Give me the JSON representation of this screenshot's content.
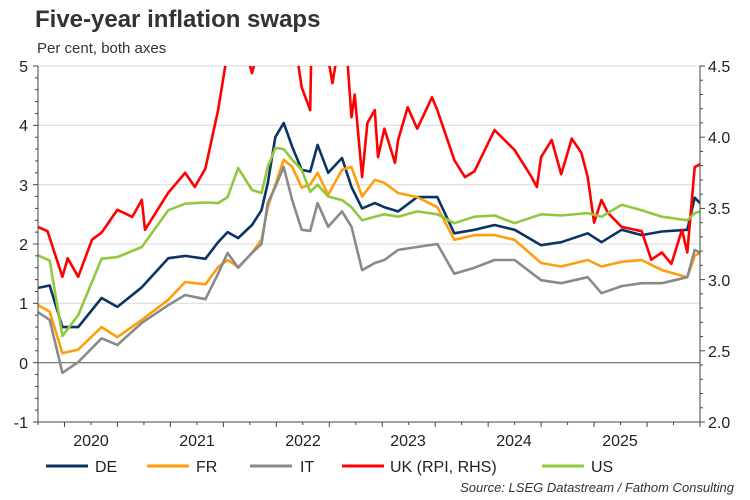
{
  "chart_data": {
    "type": "line",
    "title": "Five-year inflation swaps",
    "subtitle": "Per cent, both axes",
    "source": "Source: LSEG Datastream / Fathom Consulting",
    "x_axis": {
      "range": [
        2020.0,
        2026.25
      ],
      "tick_labels": [
        "2020",
        "2021",
        "2022",
        "2023",
        "2024",
        "2025"
      ]
    },
    "y_left": {
      "range": [
        -1,
        5
      ],
      "tick_labels": [
        "5",
        "4",
        "3",
        "2",
        "1",
        "0",
        "-1"
      ]
    },
    "y_right": {
      "range": [
        2.0,
        4.5
      ],
      "tick_labels": [
        "4.5",
        "4.0",
        "3.5",
        "3.0",
        "2.5",
        "2.0"
      ]
    },
    "grid": true,
    "legend_position": "bottom",
    "x": [
      2020.0,
      2020.11,
      2020.23,
      2020.38,
      2020.6,
      2020.75,
      2020.98,
      2021.23,
      2021.39,
      2021.58,
      2021.7,
      2021.79,
      2021.89,
      2022.02,
      2022.11,
      2022.17,
      2022.24,
      2022.32,
      2022.4,
      2022.49,
      2022.57,
      2022.64,
      2022.74,
      2022.87,
      2022.96,
      2023.06,
      2023.18,
      2023.27,
      2023.4,
      2023.58,
      2023.77,
      2023.93,
      2024.12,
      2024.31,
      2024.5,
      2024.75,
      2024.94,
      2025.19,
      2025.32,
      2025.51,
      2025.7,
      2025.89,
      2026.13,
      2026.2,
      2026.25
    ],
    "series": [
      {
        "name": "DE",
        "axis": "left",
        "color": "#0b3463",
        "values": [
          1.26,
          1.3,
          0.6,
          0.6,
          1.09,
          0.94,
          1.27,
          1.76,
          1.8,
          1.75,
          2.03,
          2.2,
          2.1,
          2.32,
          2.57,
          3.03,
          3.8,
          4.04,
          3.64,
          3.25,
          3.22,
          3.67,
          3.2,
          3.45,
          2.96,
          2.6,
          2.69,
          2.62,
          2.55,
          2.79,
          2.79,
          2.18,
          2.24,
          2.32,
          2.24,
          1.98,
          2.03,
          2.18,
          2.03,
          2.24,
          2.15,
          2.21,
          2.24,
          2.78,
          2.69
        ]
      },
      {
        "name": "FR",
        "axis": "left",
        "color": "#ff9e0d",
        "values": [
          0.97,
          0.86,
          0.16,
          0.22,
          0.6,
          0.43,
          0.72,
          1.06,
          1.36,
          1.32,
          1.61,
          1.73,
          1.61,
          1.85,
          2.07,
          2.62,
          3.0,
          3.42,
          3.3,
          2.95,
          3.0,
          3.2,
          2.83,
          3.25,
          3.3,
          2.8,
          3.08,
          3.03,
          2.86,
          2.79,
          2.62,
          2.07,
          2.15,
          2.15,
          2.07,
          1.68,
          1.62,
          1.73,
          1.62,
          1.7,
          1.73,
          1.56,
          1.44,
          1.8,
          1.85
        ]
      },
      {
        "name": "IT",
        "axis": "left",
        "color": "#8a8a8a",
        "values": [
          0.85,
          0.72,
          -0.17,
          0.01,
          0.41,
          0.3,
          0.67,
          0.97,
          1.14,
          1.07,
          1.5,
          1.85,
          1.6,
          1.85,
          2.0,
          2.69,
          2.96,
          3.3,
          2.74,
          2.24,
          2.22,
          2.69,
          2.29,
          2.55,
          2.29,
          1.56,
          1.68,
          1.73,
          1.9,
          1.95,
          2.0,
          1.5,
          1.6,
          1.73,
          1.73,
          1.39,
          1.34,
          1.44,
          1.17,
          1.29,
          1.34,
          1.34,
          1.44,
          1.9,
          1.85
        ]
      },
      {
        "name": "UK (RPI, RHS)",
        "axis": "right",
        "color": "#ff0000",
        "x": [
          2020.0,
          2020.09,
          2020.23,
          2020.28,
          2020.38,
          2020.51,
          2020.6,
          2020.75,
          2020.89,
          2020.98,
          2021.01,
          2021.23,
          2021.39,
          2021.48,
          2021.58,
          2021.7,
          2021.79,
          2021.91,
          2022.02,
          2022.14,
          2022.28,
          2022.44,
          2022.49,
          2022.57,
          2022.58,
          2022.68,
          2022.78,
          2022.85,
          2022.92,
          2022.96,
          2022.99,
          2023.06,
          2023.11,
          2023.18,
          2023.21,
          2023.27,
          2023.37,
          2023.4,
          2023.49,
          2023.58,
          2023.72,
          2023.77,
          2023.93,
          2024.03,
          2024.12,
          2024.31,
          2024.5,
          2024.66,
          2024.71,
          2024.75,
          2024.85,
          2024.94,
          2025.04,
          2025.13,
          2025.19,
          2025.25,
          2025.32,
          2025.38,
          2025.51,
          2025.7,
          2025.79,
          2025.89,
          2025.98,
          2026.08,
          2026.13,
          2026.2,
          2026.25
        ],
        "values": [
          3.37,
          3.34,
          3.02,
          3.15,
          3.02,
          3.28,
          3.33,
          3.49,
          3.44,
          3.56,
          3.35,
          3.61,
          3.75,
          3.65,
          3.78,
          4.19,
          4.6,
          4.75,
          4.45,
          4.8,
          4.9,
          4.6,
          4.35,
          4.19,
          4.6,
          4.8,
          4.38,
          4.7,
          4.55,
          4.14,
          4.3,
          3.72,
          4.1,
          4.19,
          3.86,
          4.06,
          3.82,
          3.98,
          4.21,
          4.06,
          4.28,
          4.19,
          3.84,
          3.72,
          3.76,
          4.05,
          3.91,
          3.72,
          3.65,
          3.86,
          3.98,
          3.74,
          3.99,
          3.89,
          3.72,
          3.4,
          3.56,
          3.47,
          3.37,
          3.34,
          3.14,
          3.19,
          3.11,
          3.35,
          3.19,
          3.79,
          3.81
        ]
      },
      {
        "name": "US",
        "axis": "left",
        "color": "#92c83e",
        "values": [
          1.81,
          1.72,
          0.45,
          0.8,
          1.75,
          1.78,
          1.95,
          2.57,
          2.68,
          2.7,
          2.69,
          2.79,
          3.28,
          2.91,
          2.86,
          3.3,
          3.62,
          3.6,
          3.42,
          3.25,
          2.88,
          3.0,
          2.8,
          2.74,
          2.62,
          2.4,
          2.46,
          2.5,
          2.46,
          2.55,
          2.5,
          2.35,
          2.46,
          2.48,
          2.35,
          2.5,
          2.48,
          2.52,
          2.46,
          2.66,
          2.57,
          2.46,
          2.4,
          2.52,
          2.55
        ]
      }
    ]
  }
}
